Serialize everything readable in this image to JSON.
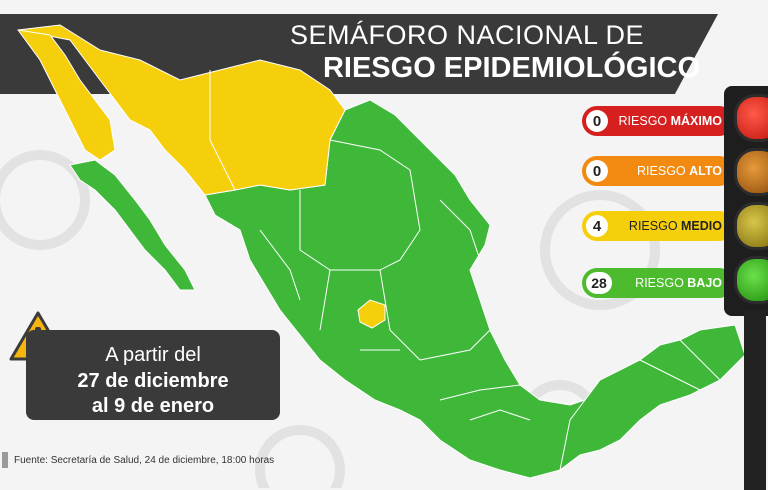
{
  "title": {
    "line1": "SEMÁFORO NACIONAL DE",
    "line2": "RIESGO EPIDEMIOLÓGICO"
  },
  "legend": [
    {
      "count": "0",
      "prefix": "RIESGO ",
      "level": "MÁXIMO",
      "color": "#d61f1f",
      "text_color": "#ffffff"
    },
    {
      "count": "0",
      "prefix": "RIESGO ",
      "level": "ALTO",
      "color": "#f28a12",
      "text_color": "#ffffff"
    },
    {
      "count": "4",
      "prefix": "RIESGO ",
      "level": "MEDIO",
      "color": "#f6cf0c",
      "text_color": "#222222"
    },
    {
      "count": "28",
      "prefix": "RIESGO ",
      "level": "BAJO",
      "color": "#4cbb2e",
      "text_color": "#ffffff"
    }
  ],
  "date_range": {
    "line1": "A partir del",
    "line2": "27 de diciembre",
    "line3": "al 9 de enero"
  },
  "source": "Fuente: Secretaría de Salud, 24 de diciembre, 18:00 horas",
  "colors": {
    "green": "#3fb83a",
    "yellow": "#f6cf0c",
    "banner": "#3a3a3a"
  },
  "map_icon": "warning-triangle-icon"
}
